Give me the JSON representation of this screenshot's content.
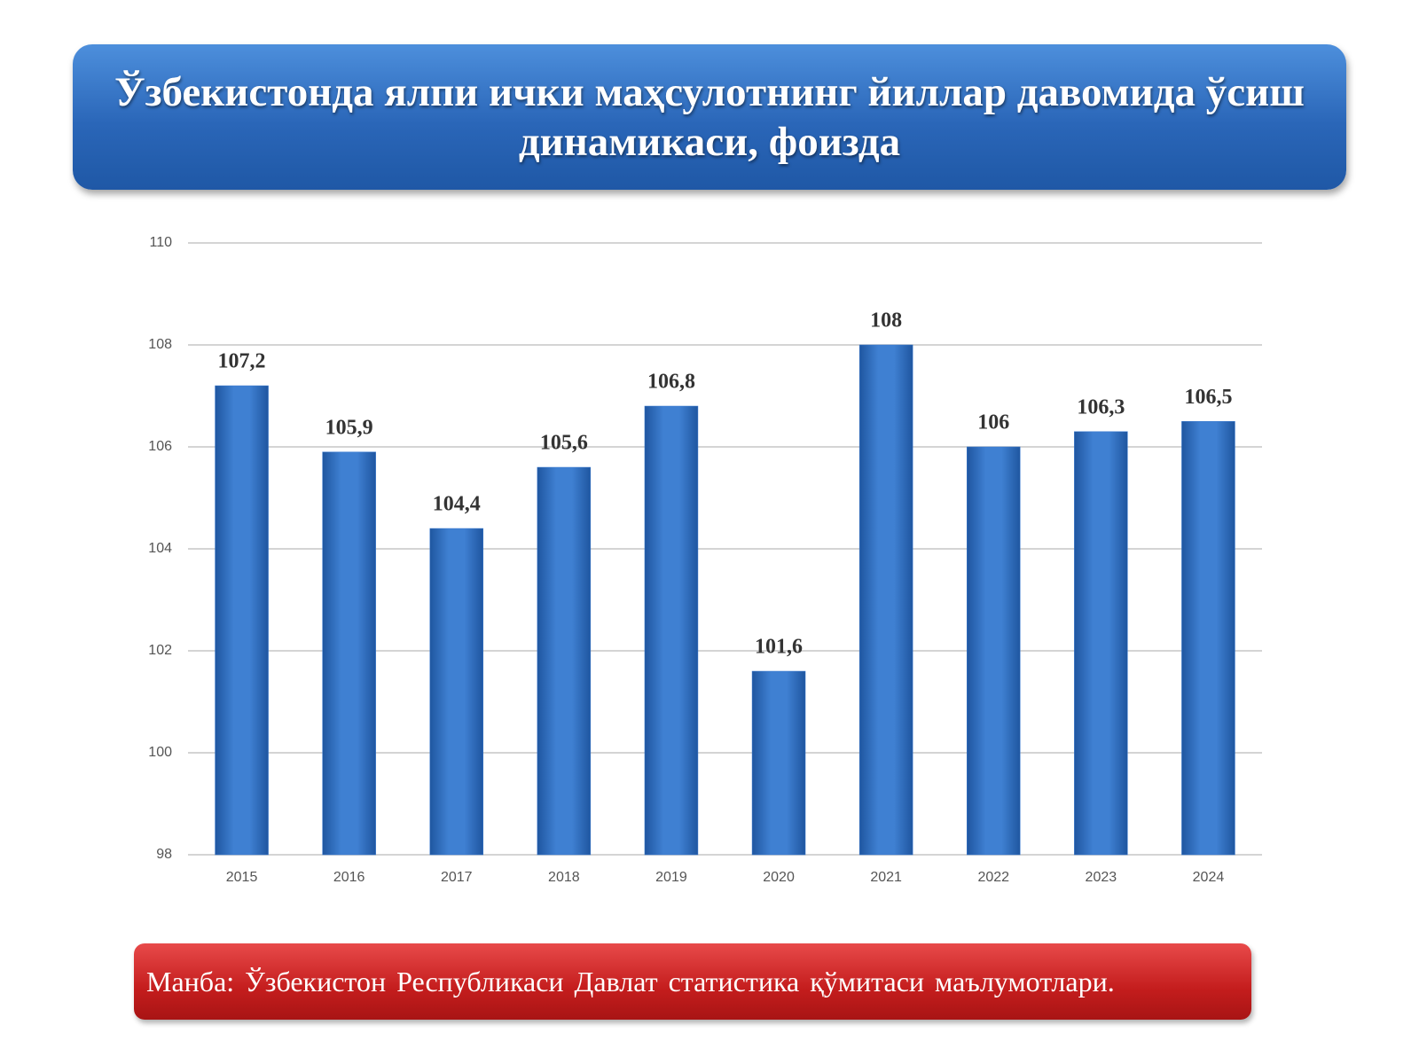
{
  "chart_data": {
    "type": "bar",
    "title": "Ўзбекистонда ялпи ички маҳсулотнинг йиллар давомида ўсиш динамикаси, фоизда",
    "source": "Манба: Ўзбекистон Республикаси Давлат статистика қўмитаси маълумотлари.",
    "categories": [
      "2015",
      "2016",
      "2017",
      "2018",
      "2019",
      "2020",
      "2021",
      "2022",
      "2023",
      "2024"
    ],
    "values": [
      107.2,
      105.9,
      104.4,
      105.6,
      106.8,
      101.6,
      108,
      106,
      106.3,
      106.5
    ],
    "value_labels": [
      "107,2",
      "105,9",
      "104,4",
      "105,6",
      "106,8",
      "101,6",
      "108",
      "106",
      "106,3",
      "106,5"
    ],
    "color": "#3b7bd0",
    "ylim": [
      98,
      110
    ],
    "yticks": [
      98,
      100,
      102,
      104,
      106,
      108,
      110
    ],
    "grid": true
  }
}
